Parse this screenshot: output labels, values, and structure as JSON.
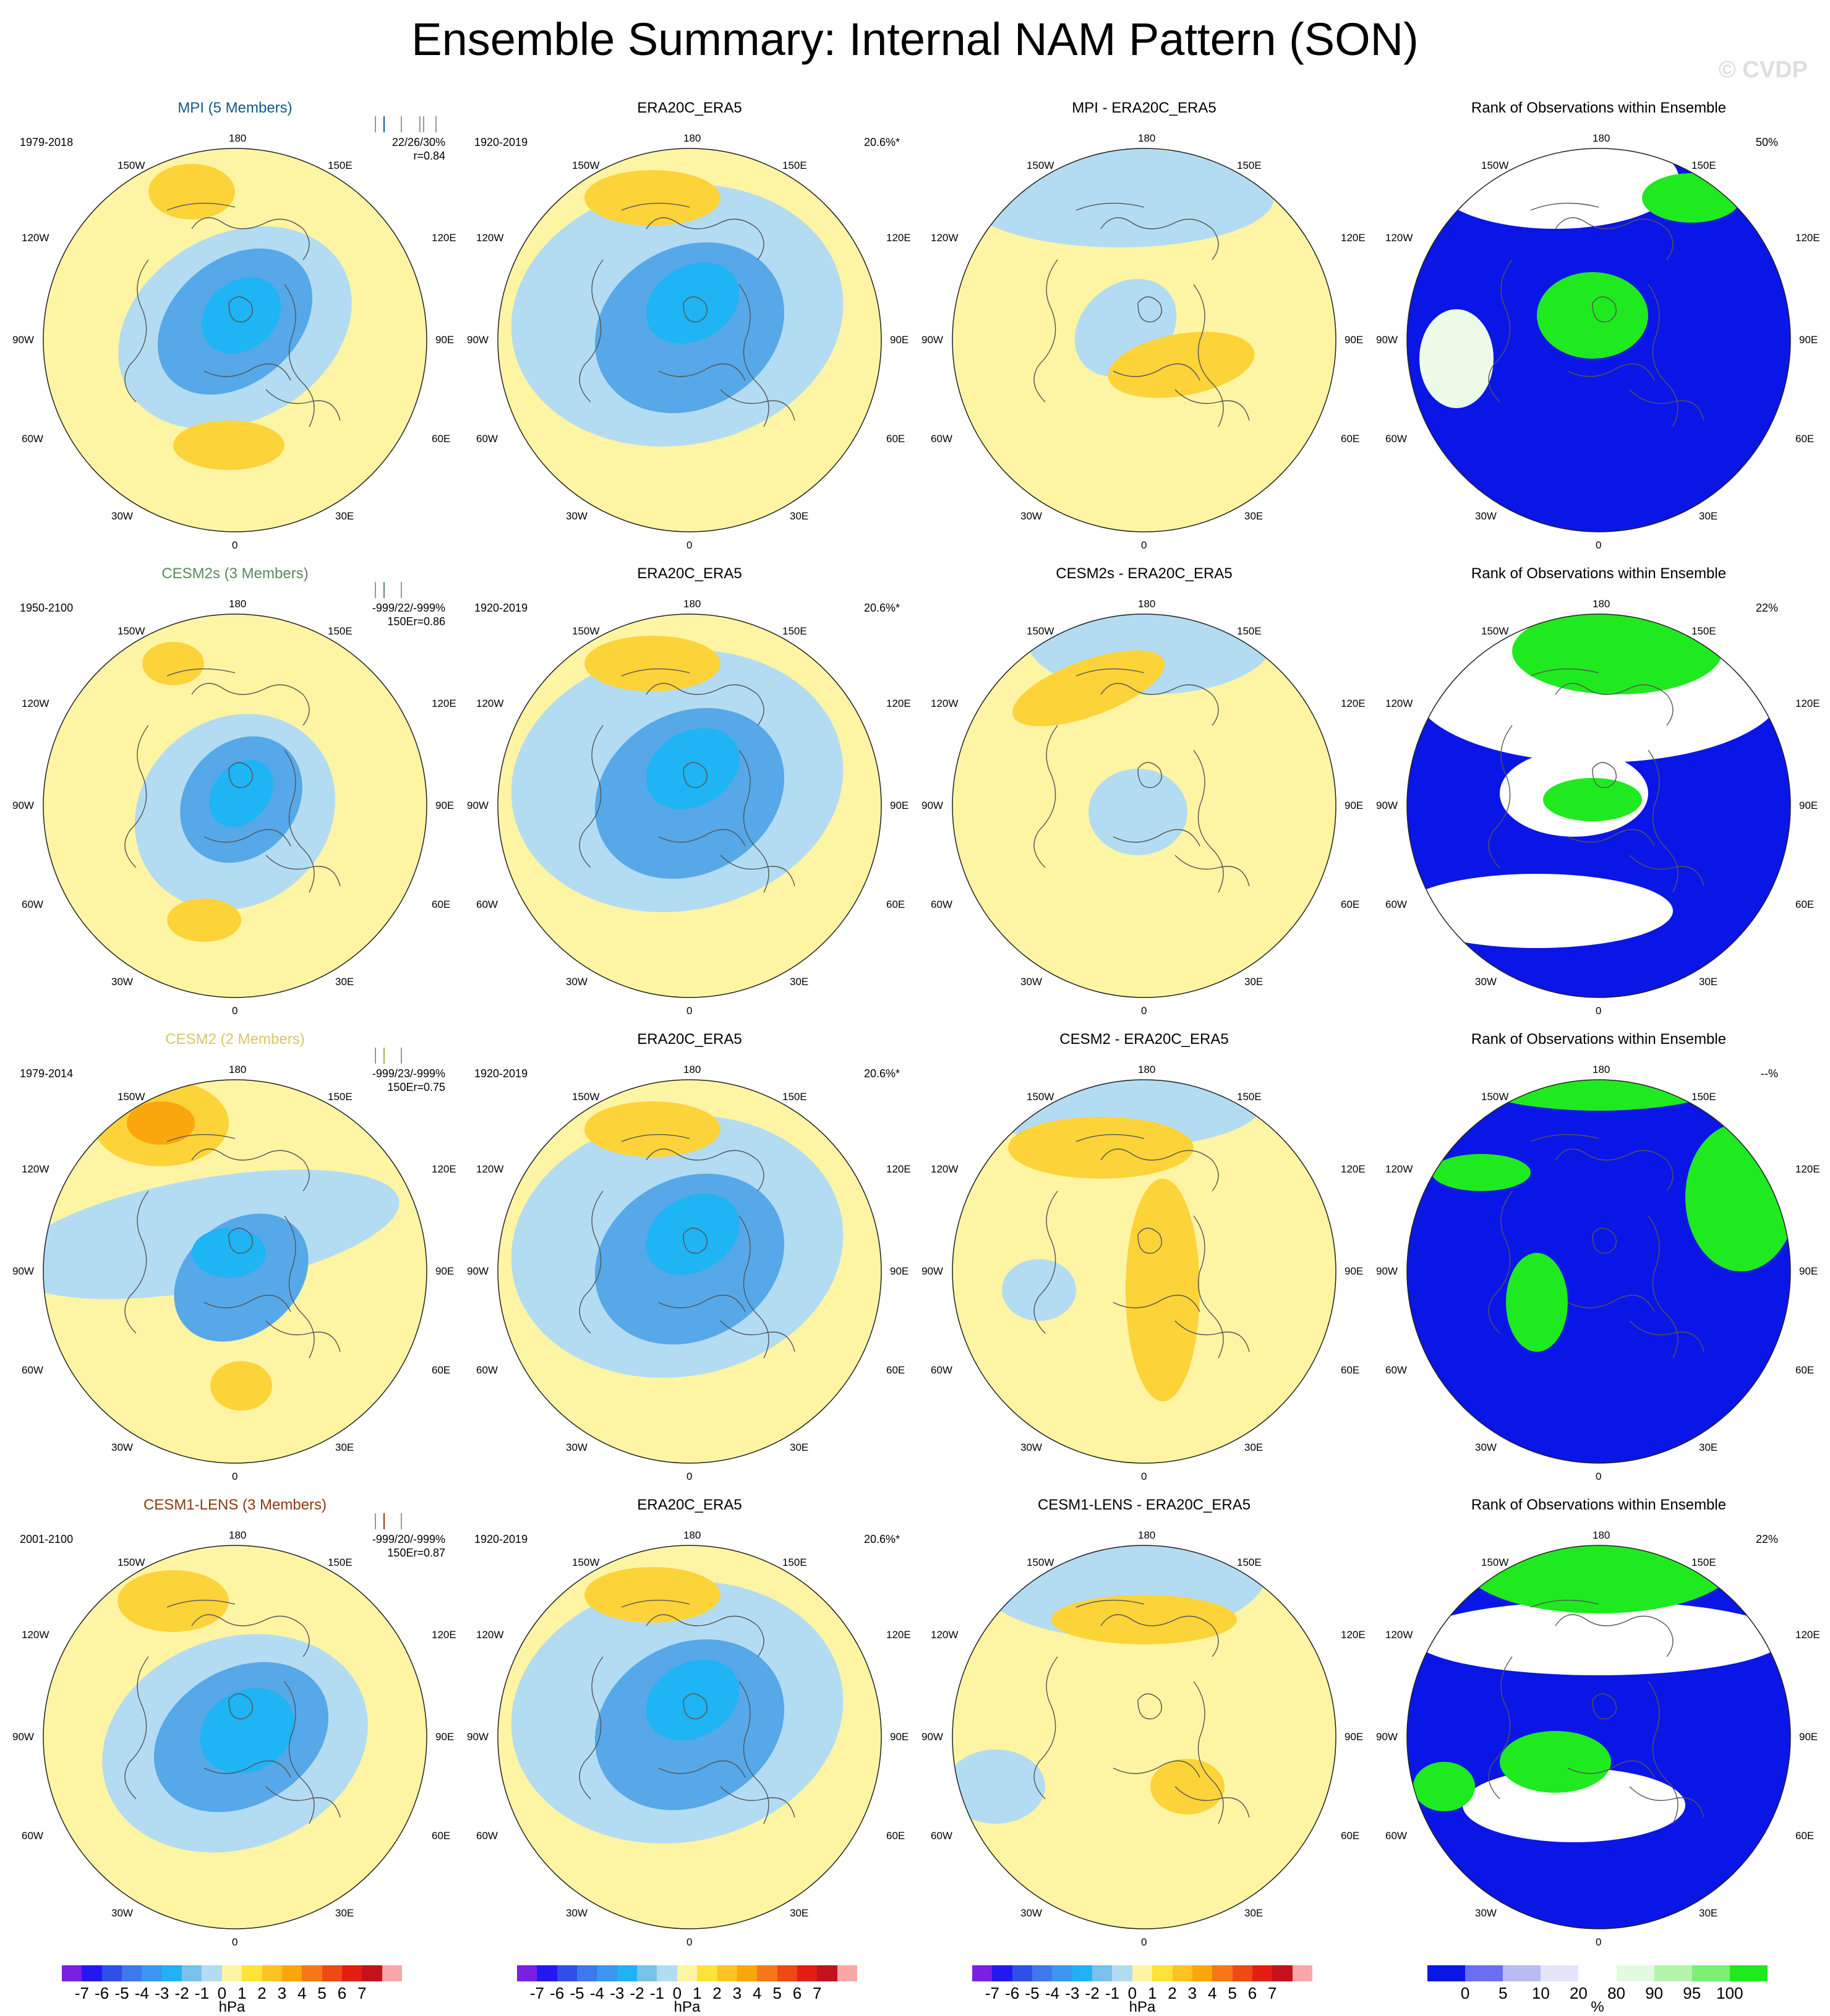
{
  "title": "Ensemble Summary: Internal NAM Pattern (SON)",
  "watermark": "© CVDP",
  "colors": {
    "light_blue": "#b3dcf2",
    "mid_blue": "#7ec0ec",
    "blue": "#56a8e8",
    "bright_blue": "#1fb4f4",
    "pale_yellow": "#fdf5a4",
    "yellow": "#fdd33a",
    "orange": "#fca60e",
    "dark_orange": "#f07d0a",
    "rank_blue": "#0a16e6",
    "rank_green": "#1fea1f",
    "rank_pale": "#ecfbe8",
    "map_line": "#555555"
  },
  "lon_labels": {
    "top": "180",
    "bottom": "0",
    "150W": "150W",
    "150E": "150E",
    "120W": "120W",
    "120E": "120E",
    "90W": "90W",
    "90E": "90E",
    "60W": "60W",
    "60E": "60E",
    "30W": "30W",
    "30E": "30E"
  },
  "rows": [
    {
      "model": {
        "title": "MPI (5 Members)",
        "title_color": "#0f5b8a",
        "years": "1979-2018",
        "pct": "22/26/30%",
        "r": "r=0.84",
        "tick_color": "#0f5b8a"
      },
      "obs": {
        "title": "ERA20C_ERA5",
        "years": "1920-2019",
        "pct": "20.6%*"
      },
      "diff": {
        "title": "MPI - ERA20C_ERA5"
      },
      "rank": {
        "title": "Rank of Observations within Ensemble",
        "pct": "50%"
      }
    },
    {
      "model": {
        "title": "CESM2s (3 Members)",
        "title_color": "#5a8a5a",
        "years": "1950-2100",
        "pct": "-999/22/-999%",
        "r": "150Er=0.86",
        "tick_color": "#5a8a5a"
      },
      "obs": {
        "title": "ERA20C_ERA5",
        "years": "1920-2019",
        "pct": "20.6%*"
      },
      "diff": {
        "title": "CESM2s - ERA20C_ERA5"
      },
      "rank": {
        "title": "Rank of Observations within Ensemble",
        "pct": "22%"
      }
    },
    {
      "model": {
        "title": "CESM2 (2 Members)",
        "title_color": "#d9c66a",
        "years": "1979-2014",
        "pct": "-999/23/-999%",
        "r": "150Er=0.75",
        "tick_color": "#b8a740"
      },
      "obs": {
        "title": "ERA20C_ERA5",
        "years": "1920-2019",
        "pct": "20.6%*"
      },
      "diff": {
        "title": "CESM2 - ERA20C_ERA5"
      },
      "rank": {
        "title": "Rank of Observations within Ensemble",
        "pct": "--%"
      }
    },
    {
      "model": {
        "title": "CESM1-LENS (3 Members)",
        "title_color": "#8b3a12",
        "years": "2001-2100",
        "pct": "-999/20/-999%",
        "r": "150Er=0.87",
        "tick_color": "#8b3a12"
      },
      "obs": {
        "title": "ERA20C_ERA5",
        "years": "1920-2019",
        "pct": "20.6%*"
      },
      "diff": {
        "title": "CESM1-LENS - ERA20C_ERA5"
      },
      "rank": {
        "title": "Rank of Observations within Ensemble",
        "pct": "22%"
      }
    }
  ],
  "hpa_colorbar": {
    "unit": "hPa",
    "labels": [
      "-7",
      "-6",
      "-5",
      "-4",
      "-3",
      "-2",
      "-1",
      "0",
      "1",
      "2",
      "3",
      "4",
      "5",
      "6",
      "7"
    ],
    "colors": [
      "#7b1fe0",
      "#2418f0",
      "#2f4fe6",
      "#3f78ea",
      "#3c95ee",
      "#22b2f2",
      "#79c2ec",
      "#b3dcf2",
      "#fdf5a4",
      "#fde23a",
      "#fdc224",
      "#fca60e",
      "#f5771a",
      "#ee4a14",
      "#e41e12",
      "#c4121c",
      "#f8a8a8"
    ]
  },
  "rank_colorbar": {
    "unit": "%",
    "labels": [
      "0",
      "5",
      "10",
      "20",
      "80",
      "90",
      "95",
      "100"
    ],
    "colors": [
      "#0a16e6",
      "#6a6ff0",
      "#b9bbf5",
      "#e4e4fb",
      "#ffffff",
      "#e2fae0",
      "#b2f4ac",
      "#7cef74",
      "#1fea1f"
    ]
  }
}
